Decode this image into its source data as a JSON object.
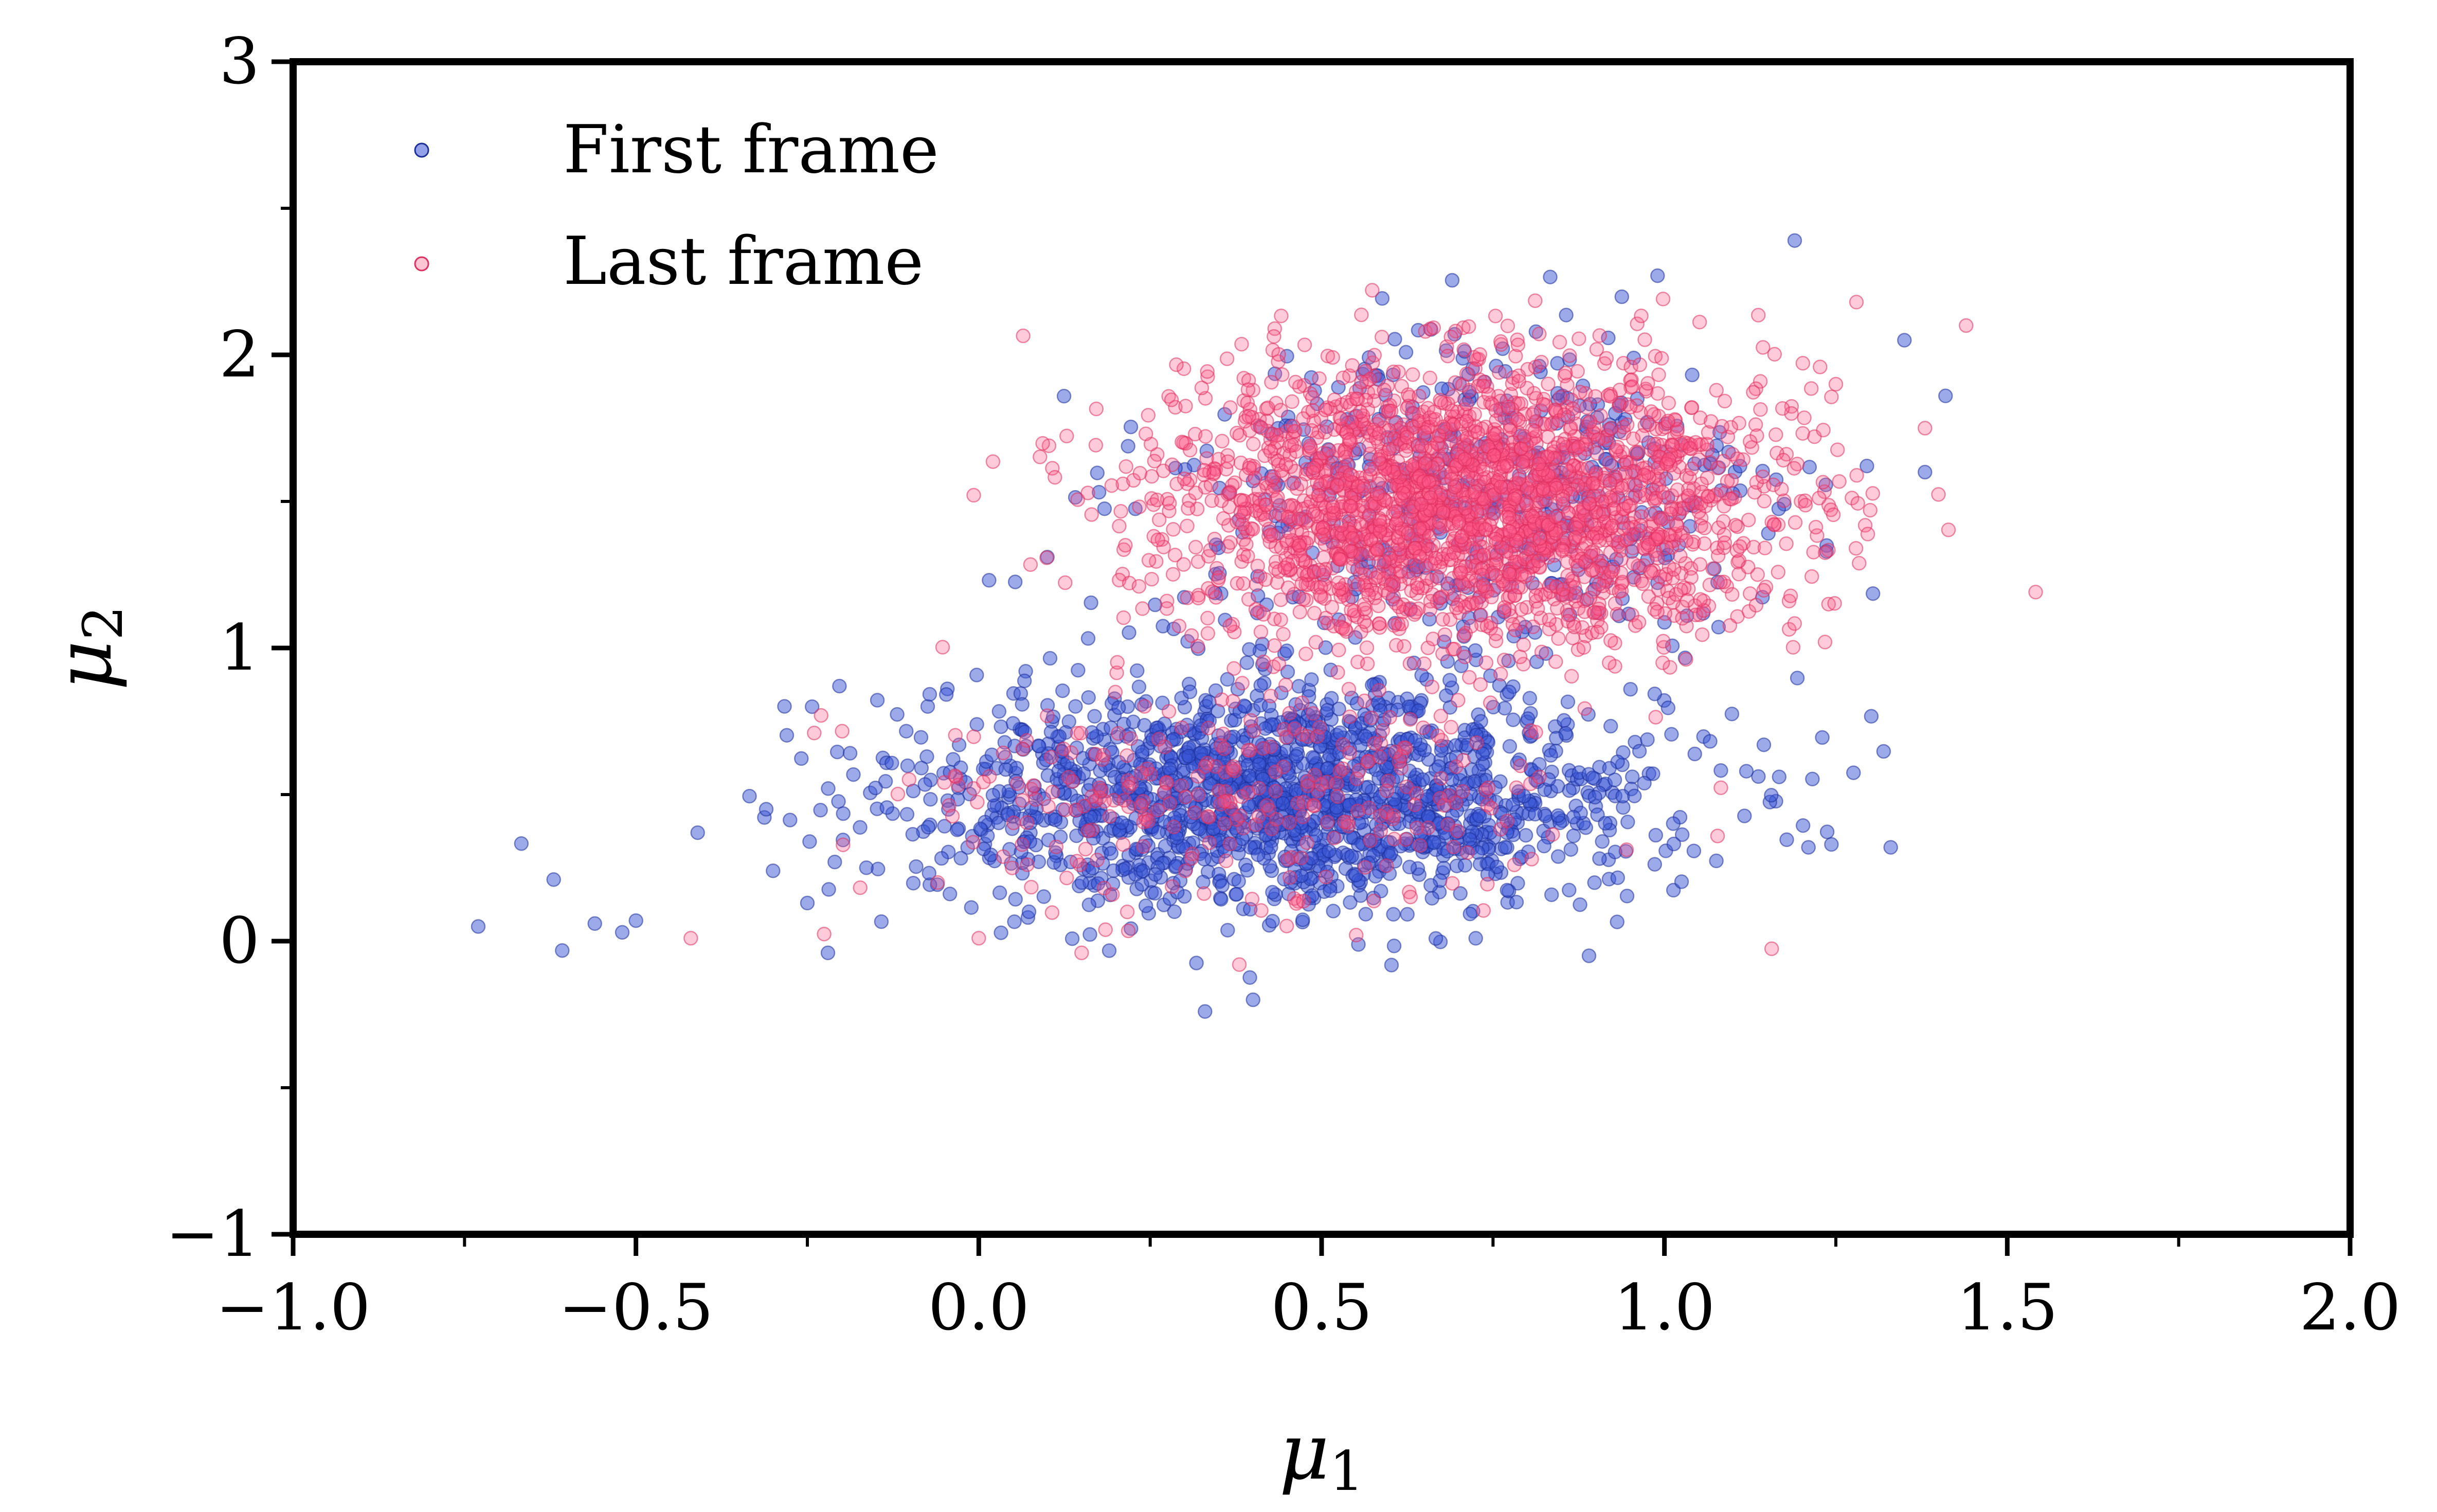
{
  "chart_data": {
    "type": "scatter",
    "title": "",
    "xlabel": {
      "symbol": "μ",
      "sub": "1"
    },
    "ylabel": {
      "symbol": "μ",
      "sub": "2"
    },
    "xlim": [
      -1.0,
      2.0
    ],
    "ylim": [
      -1,
      3
    ],
    "xticks": [
      "−1.0",
      "−0.5",
      "0.0",
      "0.5",
      "1.0",
      "1.5",
      "2.0"
    ],
    "xtick_values": [
      -1.0,
      -0.5,
      0.0,
      0.5,
      1.0,
      1.5,
      2.0
    ],
    "yticks": [
      "−1",
      "0",
      "1",
      "2",
      "3"
    ],
    "ytick_values": [
      -1,
      0,
      1,
      2,
      3
    ],
    "grid": false,
    "legend_position": "top-left",
    "series": [
      {
        "name": "First frame",
        "color": "#3a55d6",
        "edge": "#1e2f9a",
        "clusters": [
          {
            "n": 1700,
            "mean": [
              0.45,
              0.5
            ],
            "sd": [
              0.27,
              0.19
            ]
          },
          {
            "n": 550,
            "mean": [
              0.72,
              1.5
            ],
            "sd": [
              0.22,
              0.27
            ]
          }
        ],
        "outliers": [
          [
            -0.73,
            0.05
          ],
          [
            -0.62,
            0.21
          ],
          [
            -0.56,
            0.06
          ],
          [
            -0.52,
            0.03
          ],
          [
            -0.5,
            0.07
          ],
          [
            -0.41,
            0.37
          ],
          [
            -0.31,
            0.45
          ],
          [
            -0.3,
            0.24
          ],
          [
            -0.25,
            0.13
          ],
          [
            -0.22,
            -0.04
          ],
          [
            -0.21,
            0.27
          ],
          [
            1.33,
            0.32
          ],
          [
            1.21,
            0.32
          ],
          [
            1.19,
            2.39
          ],
          [
            1.41,
            1.86
          ],
          [
            1.38,
            1.6
          ],
          [
            1.35,
            2.05
          ],
          [
            0.99,
            2.27
          ],
          [
            0.1,
            1.31
          ],
          [
            0.33,
            -0.24
          ],
          [
            0.4,
            -0.2
          ],
          [
            0.89,
            -0.05
          ]
        ]
      },
      {
        "name": "Last frame",
        "color": "#ff5a88",
        "edge": "#e0305f",
        "clusters": [
          {
            "n": 2400,
            "mean": [
              0.72,
              1.5
            ],
            "sd": [
              0.22,
              0.23
            ]
          },
          {
            "n": 300,
            "mean": [
              0.4,
              0.5
            ],
            "sd": [
              0.24,
              0.2
            ]
          }
        ],
        "outliers": [
          [
            -0.42,
            0.01
          ],
          [
            -0.23,
            0.77
          ],
          [
            -0.24,
            0.71
          ],
          [
            1.44,
            2.1
          ],
          [
            1.28,
            2.18
          ],
          [
            1.38,
            1.75
          ],
          [
            0.0,
            0.01
          ],
          [
            -0.06,
            0.2
          ],
          [
            0.15,
            -0.04
          ],
          [
            0.38,
            -0.08
          ],
          [
            1.3,
            1.47
          ],
          [
            1.25,
            1.9
          ]
        ]
      }
    ]
  }
}
